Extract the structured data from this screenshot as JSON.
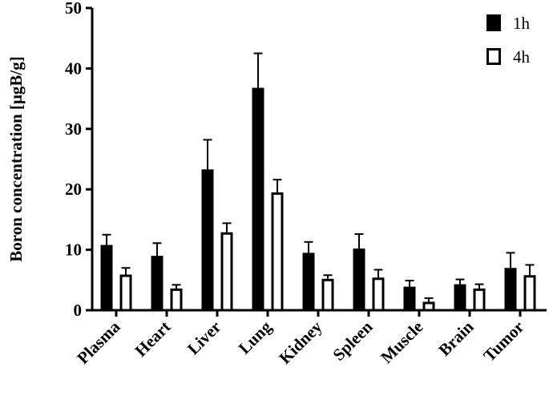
{
  "chart_data": {
    "type": "bar",
    "title": "",
    "xlabel": "",
    "ylabel": "Boron concentration [μgB/g]",
    "ylim": [
      0,
      50
    ],
    "yticks": [
      0,
      10,
      20,
      30,
      40,
      50
    ],
    "categories": [
      "Plasma",
      "Heart",
      "Liver",
      "Lung",
      "Kidney",
      "Spleen",
      "Muscle",
      "Brain",
      "Tumor"
    ],
    "series": [
      {
        "name": "1h",
        "fill": "#000000",
        "values": [
          10.8,
          9.0,
          23.3,
          36.8,
          9.5,
          10.2,
          3.9,
          4.3,
          7.0
        ],
        "errors": [
          1.7,
          2.1,
          4.9,
          5.7,
          1.8,
          2.4,
          1.0,
          0.8,
          2.5
        ]
      },
      {
        "name": "4h",
        "fill": "#ffffff",
        "values": [
          5.9,
          3.6,
          12.9,
          19.5,
          5.2,
          5.4,
          1.4,
          3.6,
          5.8
        ],
        "errors": [
          1.1,
          0.6,
          1.5,
          2.1,
          0.6,
          1.3,
          0.6,
          0.7,
          1.7
        ]
      }
    ],
    "legend": {
      "position": "top-right"
    },
    "grid": false
  }
}
